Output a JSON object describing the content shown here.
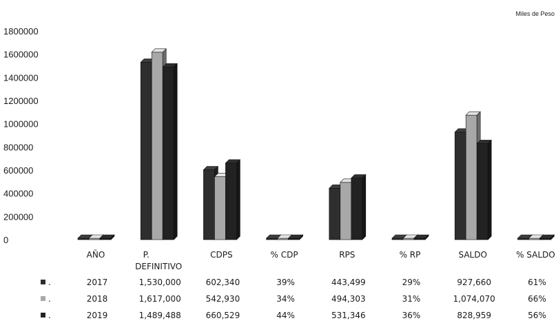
{
  "chart_data": {
    "type": "bar",
    "unit_label": "Miles de Peso",
    "categories": [
      "AÑO",
      "P. DEFINITIVO",
      "CDPS",
      "% CDP",
      "RPS",
      "% RP",
      "SALDO",
      "% SALDO"
    ],
    "y_ticks": [
      "0",
      "200000",
      "400000",
      "600000",
      "800000",
      "1000000",
      "1200000",
      "1400000",
      "1600000",
      "1800000"
    ],
    "ylim": [
      0,
      1800000
    ],
    "grid": false,
    "colors": [
      "#2e2e2e",
      "#a8a8a8",
      "#222222"
    ],
    "series": [
      {
        "name": "2017",
        "values": [
          2017,
          1530000,
          602340,
          0.39,
          443499,
          0.29,
          927660,
          0.61
        ]
      },
      {
        "name": "2018",
        "values": [
          2018,
          1617000,
          542930,
          0.34,
          494303,
          0.31,
          1074070,
          0.66
        ]
      },
      {
        "name": "2019",
        "values": [
          2019,
          1489488,
          660529,
          0.44,
          531346,
          0.36,
          828959,
          0.56
        ]
      }
    ],
    "table": {
      "rows": [
        {
          "marker": ".",
          "cells": [
            "2017",
            "1,530,000",
            "602,340",
            "39%",
            "443,499",
            "29%",
            "927,660",
            "61%"
          ]
        },
        {
          "marker": ".",
          "cells": [
            "2018",
            "1,617,000",
            "542,930",
            "34%",
            "494,303",
            "31%",
            "1,074,070",
            "66%"
          ]
        },
        {
          "marker": ".",
          "cells": [
            "2019",
            "1,489,488",
            "660,529",
            "44%",
            "531,346",
            "36%",
            "828,959",
            "56%"
          ]
        }
      ]
    }
  }
}
